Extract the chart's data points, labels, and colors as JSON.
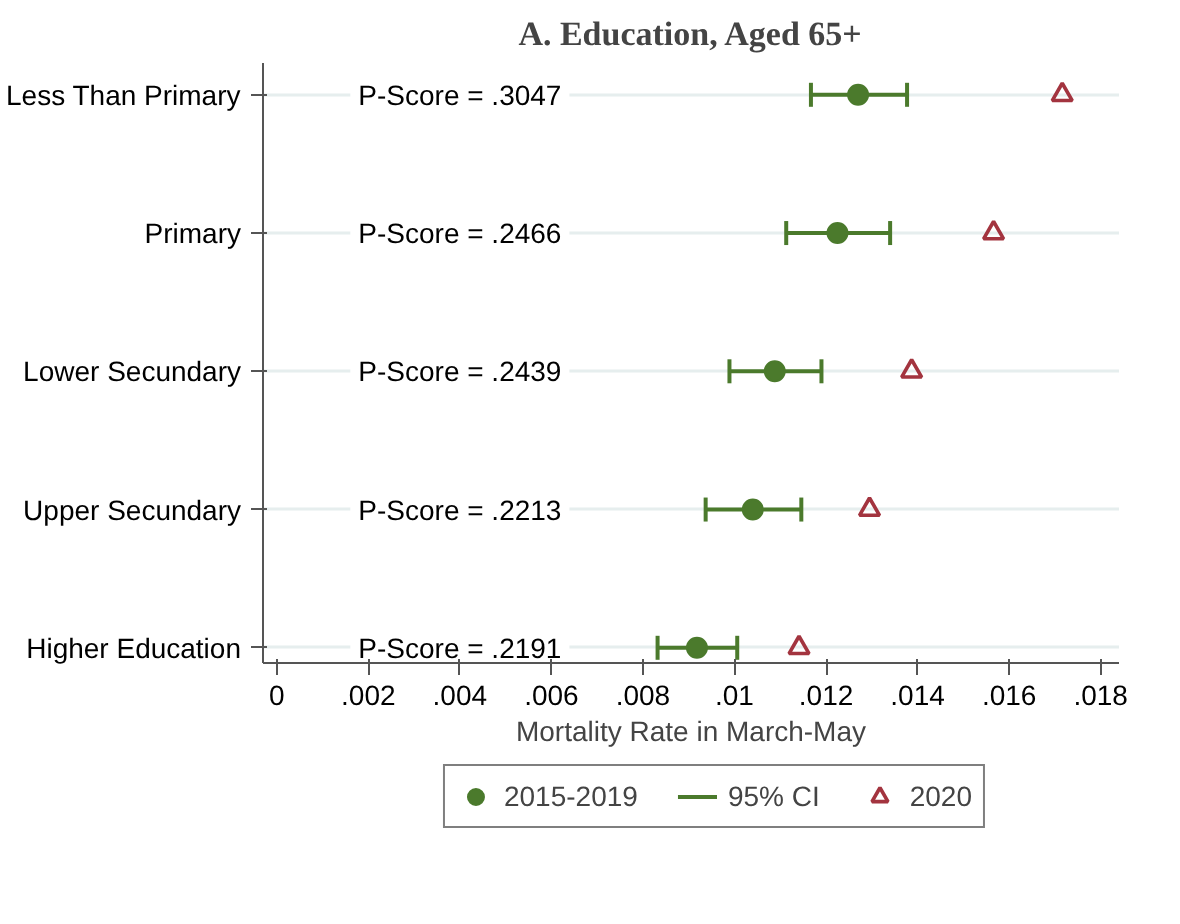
{
  "chart_data": {
    "type": "scatter",
    "title": "A. Education, Aged 65+",
    "xlabel": "Mortality Rate in March-May",
    "orientation": "horizontal",
    "categories": [
      "Less Than Primary",
      "Primary",
      "Lower Secundary",
      "Upper Secundary",
      "Higher Education"
    ],
    "series": [
      {
        "name": "2015-2019",
        "marker": "circle",
        "color": "#4b7a2c",
        "values": [
          0.0127,
          0.01225,
          0.01088,
          0.0104,
          0.00918
        ],
        "errors": [
          [
            0.01167,
            0.01377
          ],
          [
            0.01113,
            0.0134
          ],
          [
            0.00989,
            0.0119
          ],
          [
            0.00937,
            0.01146
          ],
          [
            0.00832,
            0.01006
          ]
        ]
      },
      {
        "name": "95% CI",
        "marker": "none",
        "color": "#4b7a2c",
        "values": [
          null,
          null,
          null,
          null,
          null
        ]
      },
      {
        "name": "2020",
        "marker": "triangle",
        "color": "#a3343f",
        "values": [
          0.01716,
          0.01566,
          0.01387,
          0.01295,
          0.01141
        ]
      }
    ],
    "annotations": [
      "P-Score = .3047",
      "P-Score = .2466",
      "P-Score = .2439",
      "P-Score = .2213",
      "P-Score = .2191"
    ],
    "xlim": [
      -0.0003,
      0.0184
    ],
    "xticks": [
      0,
      {
        "value": 0.002,
        "label": ".002"
      },
      {
        "value": 0.004,
        "label": ".004"
      },
      {
        "value": 0.006,
        "label": ".006"
      },
      {
        "value": 0.008,
        "label": ".008"
      },
      {
        "value": 0.01,
        "label": ".01"
      },
      {
        "value": 0.012,
        "label": ".012"
      },
      {
        "value": 0.014,
        "label": ".014"
      },
      {
        "value": 0.016,
        "label": ".016"
      },
      {
        "value": 0.018,
        "label": ".018"
      }
    ],
    "grid": "y",
    "legend": "bottom"
  }
}
